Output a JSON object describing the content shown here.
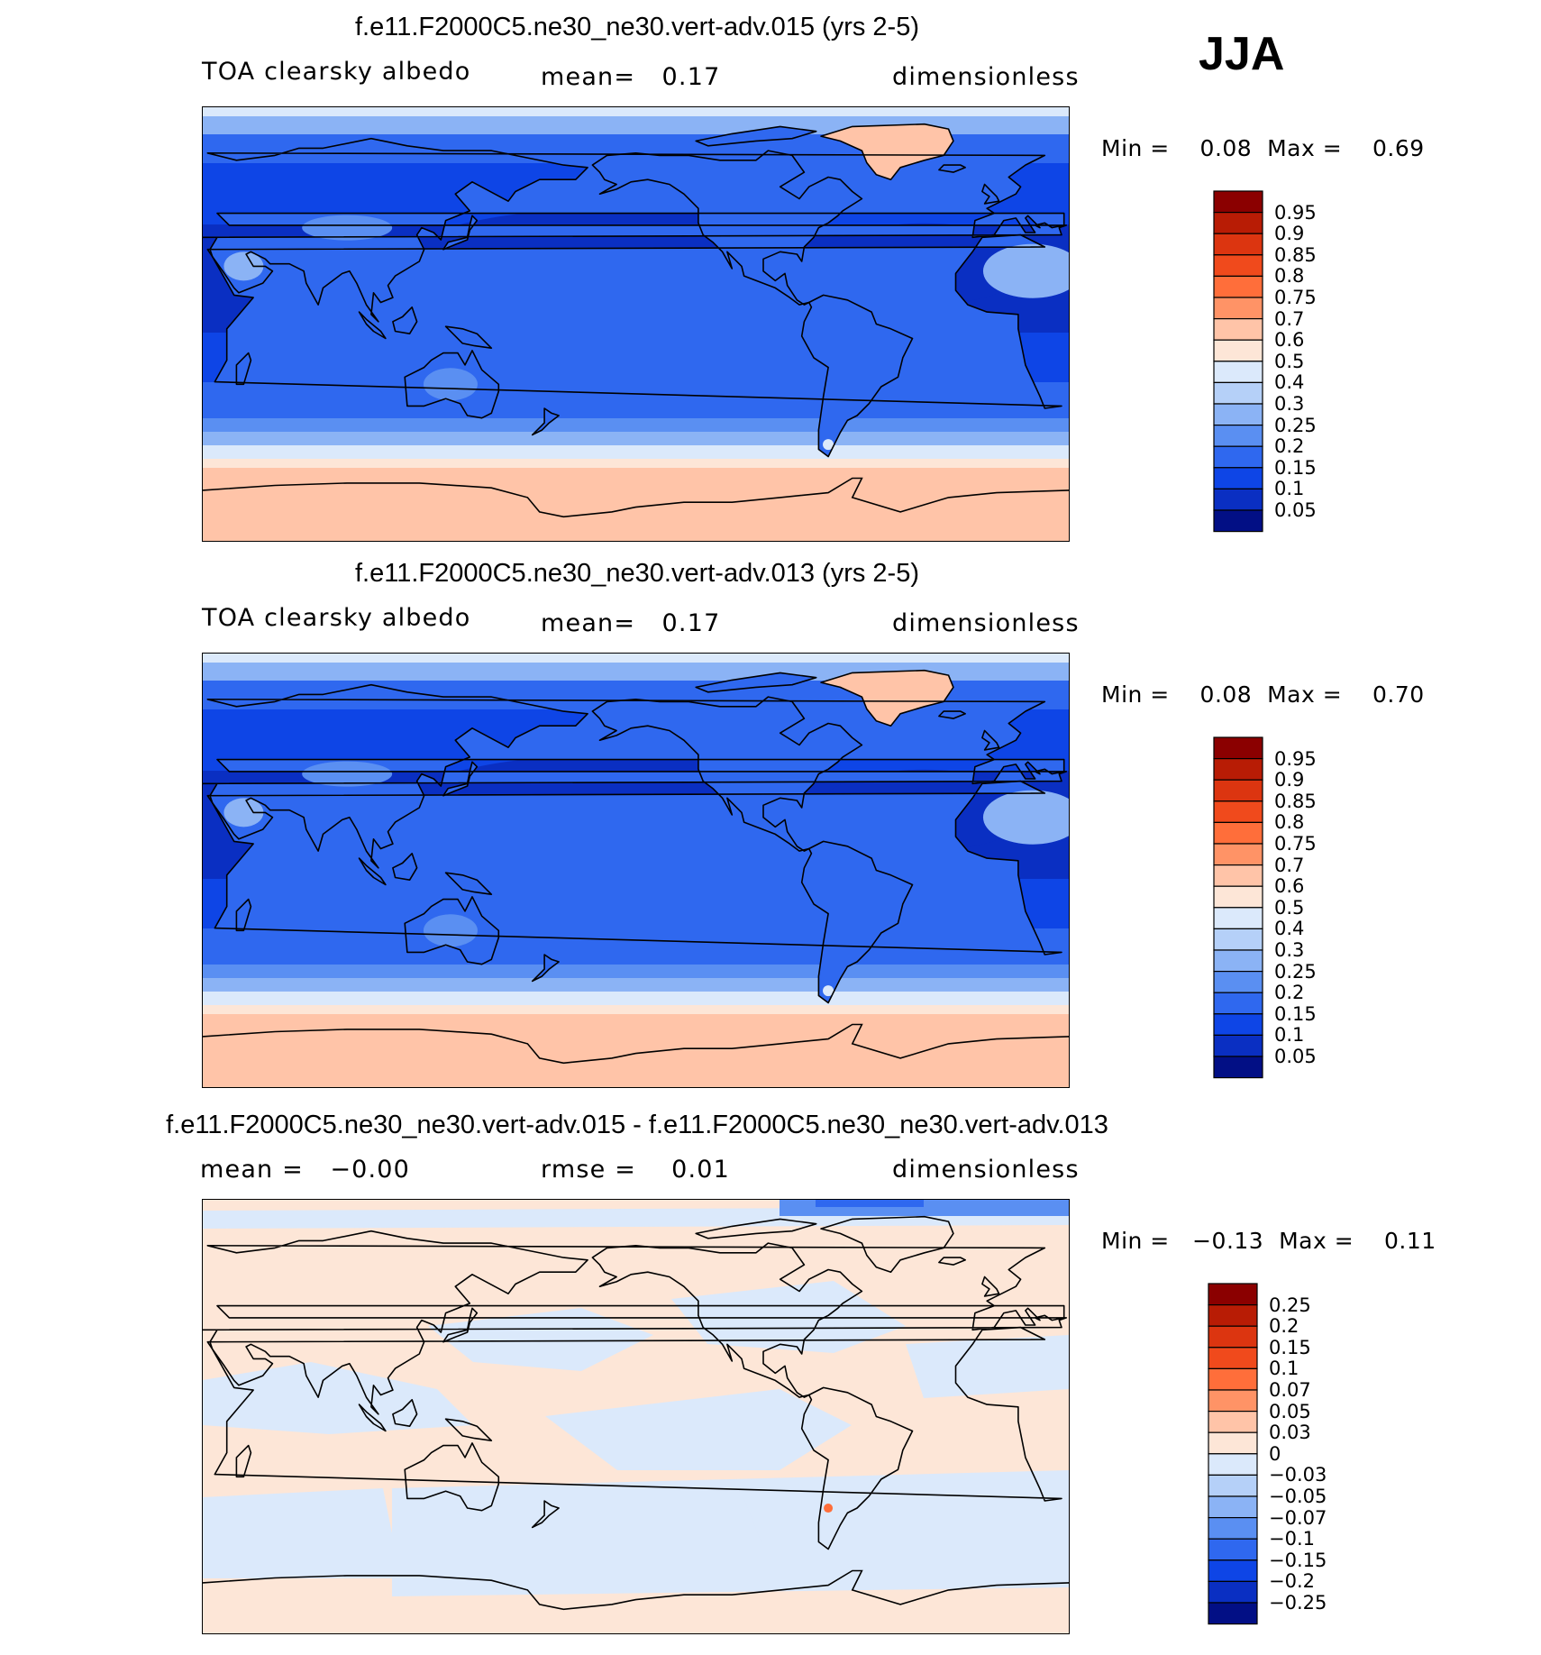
{
  "season": "JJA",
  "panels": [
    {
      "title": "f.e11.F2000C5.ne30_ne30.vert-adv.015 (yrs 2-5)",
      "left_label": "TOA clearsky albedo",
      "center_label": "mean=   0.17",
      "right_label": "dimensionless",
      "minmax": "Min =    0.08  Max =    0.69",
      "colorbar": {
        "labels": [
          "0.95",
          "0.9",
          "0.85",
          "0.8",
          "0.75",
          "0.7",
          "0.6",
          "0.5",
          "0.4",
          "0.3",
          "0.25",
          "0.2",
          "0.15",
          "0.1",
          "0.05"
        ],
        "colors": [
          "#8b0000",
          "#b81c05",
          "#dc3510",
          "#f04a1c",
          "#ff6e3a",
          "#ff9366",
          "#ffc4a8",
          "#fde6d7",
          "#dbe9fb",
          "#b5d0f8",
          "#8bb3f5",
          "#5a8ff2",
          "#2f68ef",
          "#0e45e6",
          "#0a2fc2",
          "#020f85"
        ]
      },
      "map_style": "albedo_a"
    },
    {
      "title": "f.e11.F2000C5.ne30_ne30.vert-adv.013 (yrs 2-5)",
      "left_label": "TOA clearsky albedo",
      "center_label": "mean=   0.17",
      "right_label": "dimensionless",
      "minmax": "Min =    0.08  Max =    0.70",
      "colorbar": {
        "labels": [
          "0.95",
          "0.9",
          "0.85",
          "0.8",
          "0.75",
          "0.7",
          "0.6",
          "0.5",
          "0.4",
          "0.3",
          "0.25",
          "0.2",
          "0.15",
          "0.1",
          "0.05"
        ],
        "colors": [
          "#8b0000",
          "#b81c05",
          "#dc3510",
          "#f04a1c",
          "#ff6e3a",
          "#ff9366",
          "#ffc4a8",
          "#fde6d7",
          "#dbe9fb",
          "#b5d0f8",
          "#8bb3f5",
          "#5a8ff2",
          "#2f68ef",
          "#0e45e6",
          "#0a2fc2",
          "#020f85"
        ]
      },
      "map_style": "albedo_b"
    },
    {
      "title": "f.e11.F2000C5.ne30_ne30.vert-adv.015 - f.e11.F2000C5.ne30_ne30.vert-adv.013",
      "left_label": "mean =   −0.00",
      "center_label": "rmse =    0.01",
      "right_label": "dimensionless",
      "minmax": "Min =   −0.13  Max =    0.11",
      "colorbar": {
        "labels": [
          "0.25",
          "0.2",
          "0.15",
          "0.1",
          "0.07",
          "0.05",
          "0.03",
          "0",
          "−0.03",
          "−0.05",
          "−0.07",
          "−0.1",
          "−0.15",
          "−0.2",
          "−0.25"
        ],
        "colors": [
          "#8b0000",
          "#b81c05",
          "#dc3510",
          "#f04a1c",
          "#ff6e3a",
          "#ff9366",
          "#ffc4a8",
          "#fde6d7",
          "#dbe9fb",
          "#b5d0f8",
          "#8bb3f5",
          "#5a8ff2",
          "#2f68ef",
          "#0e45e6",
          "#0a2fc2",
          "#020f85"
        ]
      },
      "map_style": "difference"
    }
  ]
}
